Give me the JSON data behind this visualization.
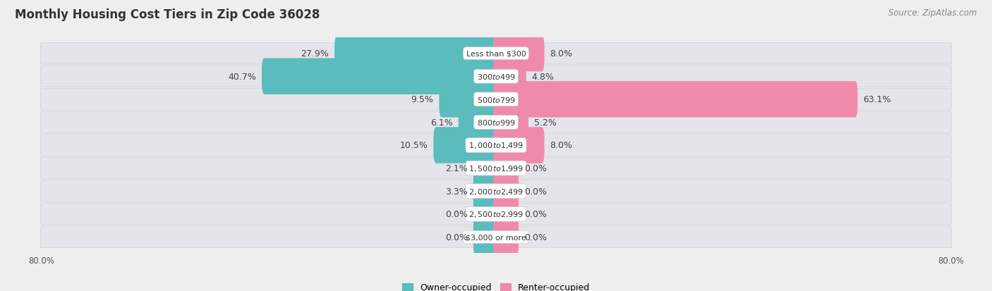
{
  "title": "Monthly Housing Cost Tiers in Zip Code 36028",
  "source": "Source: ZipAtlas.com",
  "categories": [
    "Less than $300",
    "$300 to $499",
    "$500 to $799",
    "$800 to $999",
    "$1,000 to $1,499",
    "$1,500 to $1,999",
    "$2,000 to $2,499",
    "$2,500 to $2,999",
    "$3,000 or more"
  ],
  "owner_values": [
    27.9,
    40.7,
    9.5,
    6.1,
    10.5,
    2.1,
    3.3,
    0.0,
    0.0
  ],
  "renter_values": [
    8.0,
    4.8,
    63.1,
    5.2,
    8.0,
    0.0,
    0.0,
    0.0,
    0.0
  ],
  "owner_color": "#5bbcbd",
  "renter_color": "#f08aab",
  "axis_max": 80.0,
  "axis_min": -80.0,
  "background_color": "#eeeeee",
  "bar_bg_color": "#e0e0e6",
  "row_bg_color": "#e8e8ee",
  "title_fontsize": 12,
  "source_fontsize": 8.5,
  "label_fontsize": 9,
  "category_fontsize": 8,
  "legend_fontsize": 9,
  "axis_label_fontsize": 8.5,
  "min_bar_width": 3.5
}
